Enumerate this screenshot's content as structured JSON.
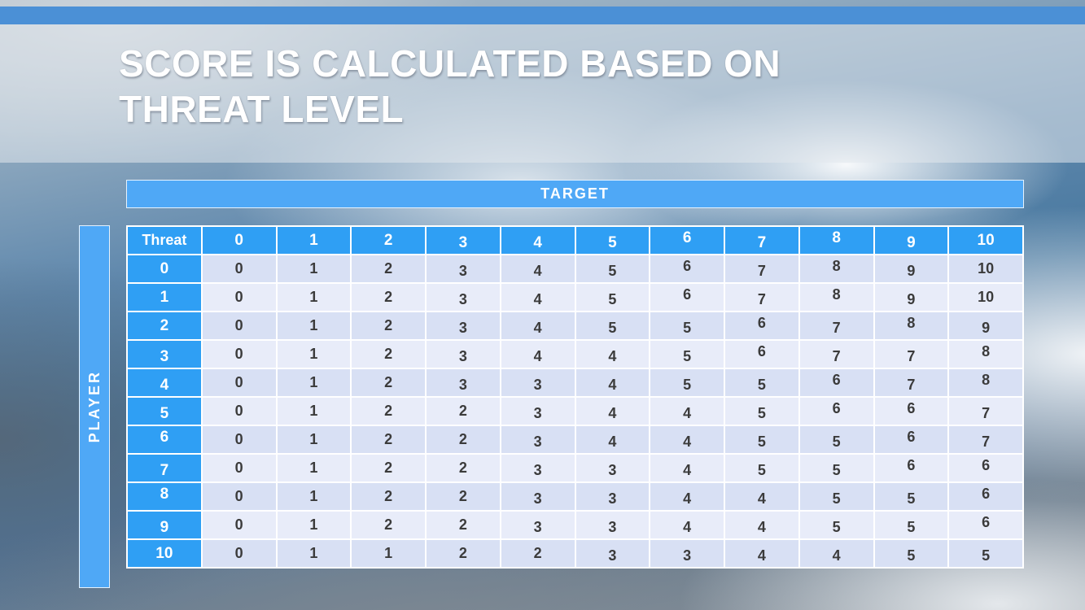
{
  "slide": {
    "title_lines": [
      "SCORE IS CALCULATED BASED ON",
      "THREAT LEVEL"
    ]
  },
  "table": {
    "target_label": "TARGET",
    "player_label": "PLAYER",
    "corner_label": "Threat",
    "column_headers": [
      "0",
      "1",
      "2",
      "3",
      "4",
      "5",
      "6",
      "7",
      "8",
      "9",
      "10"
    ],
    "rows": [
      {
        "label": "0",
        "values": [
          "0",
          "1",
          "2",
          "3",
          "4",
          "5",
          "6",
          "7",
          "8",
          "9",
          "10"
        ]
      },
      {
        "label": "1",
        "values": [
          "0",
          "1",
          "2",
          "3",
          "4",
          "5",
          "6",
          "7",
          "8",
          "9",
          "10"
        ]
      },
      {
        "label": "2",
        "values": [
          "0",
          "1",
          "2",
          "3",
          "4",
          "5",
          "5",
          "6",
          "7",
          "8",
          "9"
        ]
      },
      {
        "label": "3",
        "values": [
          "0",
          "1",
          "2",
          "3",
          "4",
          "4",
          "5",
          "6",
          "7",
          "7",
          "8"
        ]
      },
      {
        "label": "4",
        "values": [
          "0",
          "1",
          "2",
          "3",
          "3",
          "4",
          "5",
          "5",
          "6",
          "7",
          "8"
        ]
      },
      {
        "label": "5",
        "values": [
          "0",
          "1",
          "2",
          "2",
          "3",
          "4",
          "4",
          "5",
          "6",
          "6",
          "7"
        ]
      },
      {
        "label": "6",
        "values": [
          "0",
          "1",
          "2",
          "2",
          "3",
          "4",
          "4",
          "5",
          "5",
          "6",
          "7"
        ]
      },
      {
        "label": "7",
        "values": [
          "0",
          "1",
          "2",
          "2",
          "3",
          "3",
          "4",
          "5",
          "5",
          "6",
          "6"
        ]
      },
      {
        "label": "8",
        "values": [
          "0",
          "1",
          "2",
          "2",
          "3",
          "3",
          "4",
          "4",
          "5",
          "5",
          "6"
        ]
      },
      {
        "label": "9",
        "values": [
          "0",
          "1",
          "2",
          "2",
          "3",
          "3",
          "4",
          "4",
          "5",
          "5",
          "6"
        ]
      },
      {
        "label": "10",
        "values": [
          "0",
          "1",
          "1",
          "2",
          "2",
          "3",
          "3",
          "4",
          "4",
          "5",
          "5"
        ]
      }
    ]
  },
  "colors": {
    "top_bar": "#4b90d6",
    "target_blue": "#4fa8f6",
    "header_blue": "#2f9ff4",
    "row_dark": "#d8e0f4",
    "row_light": "#e8ecf9",
    "cell_text": "#3b3b3b"
  }
}
